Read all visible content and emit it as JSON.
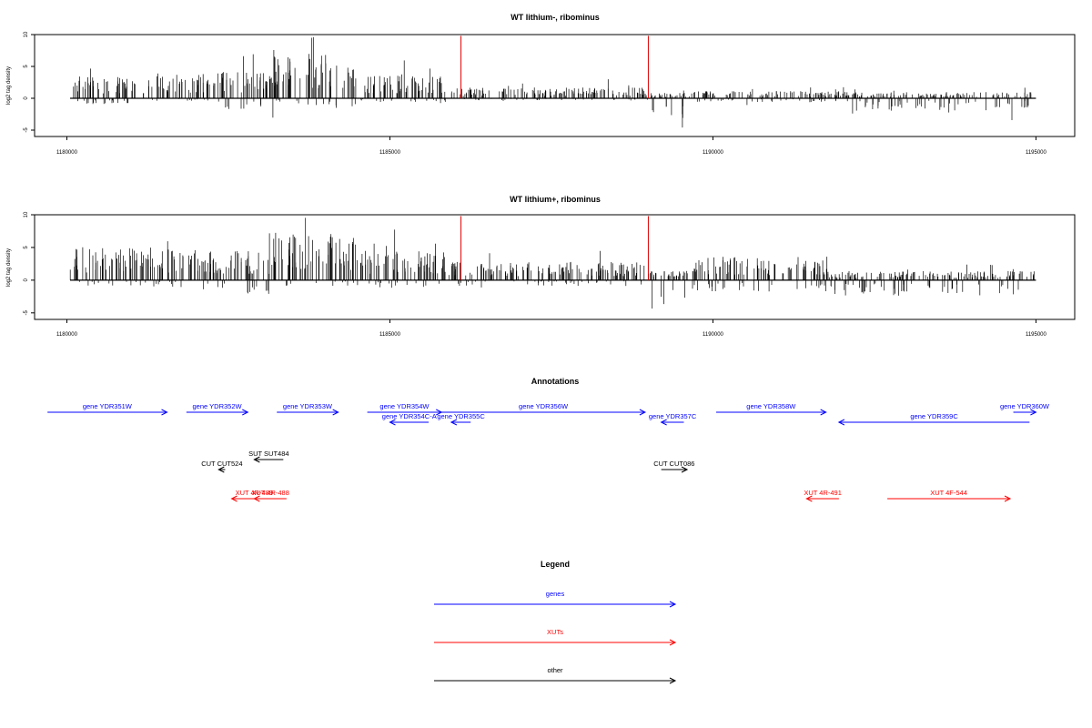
{
  "chart_data": [
    {
      "type": "bar",
      "title": "WT lithium-, ribominus",
      "ylabel": "log2 tag density",
      "xlim": [
        1179500,
        1195600
      ],
      "ylim": [
        -6,
        10
      ],
      "yticks": [
        "-5",
        "0",
        "5",
        "10"
      ],
      "xticks": [
        "1180000",
        "1185000",
        "1190000",
        "1195000"
      ],
      "markers": [
        1186100,
        1189000
      ],
      "marker_color": "#e00000",
      "regions": [
        {
          "from": 1180050,
          "to": 1181300,
          "pos": 2.5,
          "neg": -0.6
        },
        {
          "from": 1181300,
          "to": 1182200,
          "pos": 2.8,
          "neg": -0.3
        },
        {
          "from": 1182200,
          "to": 1183200,
          "pos": 3.0,
          "neg": -1.2
        },
        {
          "from": 1183200,
          "to": 1184500,
          "pos": 5.0,
          "neg": -0.9
        },
        {
          "from": 1184500,
          "to": 1185900,
          "pos": 2.6,
          "neg": -0.4
        },
        {
          "from": 1185900,
          "to": 1189000,
          "pos": 1.2,
          "neg": -0.2
        },
        {
          "from": 1189000,
          "to": 1189700,
          "pos": 0.6,
          "neg": -2.6
        },
        {
          "from": 1189700,
          "to": 1192000,
          "pos": 0.8,
          "neg": -0.4
        },
        {
          "from": 1192000,
          "to": 1195000,
          "pos": 0.7,
          "neg": -1.3
        }
      ]
    },
    {
      "type": "bar",
      "title": "WT lithium+, ribominus",
      "ylabel": "log2 tag density",
      "xlim": [
        1179500,
        1195600
      ],
      "ylim": [
        -6,
        10
      ],
      "yticks": [
        "-5",
        "0",
        "5",
        "10"
      ],
      "xticks": [
        "1180000",
        "1185000",
        "1190000",
        "1195000"
      ],
      "markers": [
        1186100,
        1189000
      ],
      "marker_color": "#e00000",
      "regions": [
        {
          "from": 1180050,
          "to": 1181300,
          "pos": 3.6,
          "neg": -0.6
        },
        {
          "from": 1181300,
          "to": 1182200,
          "pos": 3.4,
          "neg": -0.8
        },
        {
          "from": 1182200,
          "to": 1183200,
          "pos": 3.2,
          "neg": -1.4
        },
        {
          "from": 1183200,
          "to": 1184500,
          "pos": 5.2,
          "neg": -0.6
        },
        {
          "from": 1184500,
          "to": 1185900,
          "pos": 3.2,
          "neg": -0.8
        },
        {
          "from": 1185900,
          "to": 1189000,
          "pos": 2.0,
          "neg": -0.6
        },
        {
          "from": 1189000,
          "to": 1189700,
          "pos": 1.0,
          "neg": -3.0
        },
        {
          "from": 1189700,
          "to": 1191800,
          "pos": 2.6,
          "neg": -1.2
        },
        {
          "from": 1191800,
          "to": 1195000,
          "pos": 1.0,
          "neg": -1.6
        }
      ]
    }
  ],
  "annotations": {
    "title": "Annotations",
    "features": [
      {
        "label": "gene YDR351W",
        "kind": "gene",
        "strand": "+",
        "start": 1179700,
        "end": 1181550,
        "row": 0
      },
      {
        "label": "gene YDR352W",
        "kind": "gene",
        "strand": "+",
        "start": 1181850,
        "end": 1182800,
        "row": 0
      },
      {
        "label": "gene YDR353W",
        "kind": "gene",
        "strand": "+",
        "start": 1183250,
        "end": 1184200,
        "row": 0
      },
      {
        "label": "gene YDR354W",
        "kind": "gene",
        "strand": "+",
        "start": 1184650,
        "end": 1185800,
        "row": 0
      },
      {
        "label": "gene YDR354C-A",
        "kind": "gene",
        "strand": "-",
        "start": 1185000,
        "end": 1185600,
        "row": 1
      },
      {
        "label": "gene YDR355C",
        "kind": "gene",
        "strand": "-",
        "start": 1185950,
        "end": 1186250,
        "row": 1
      },
      {
        "label": "gene YDR356W",
        "kind": "gene",
        "strand": "+",
        "start": 1185800,
        "end": 1188950,
        "row": 0
      },
      {
        "label": "gene YDR357C",
        "kind": "gene",
        "strand": "-",
        "start": 1189200,
        "end": 1189550,
        "row": 1
      },
      {
        "label": "gene YDR358W",
        "kind": "gene",
        "strand": "+",
        "start": 1190050,
        "end": 1191750,
        "row": 0
      },
      {
        "label": "gene YDR359C",
        "kind": "gene",
        "strand": "-",
        "start": 1191950,
        "end": 1194900,
        "row": 1
      },
      {
        "label": "gene YDR360W",
        "kind": "gene",
        "strand": "+",
        "start": 1194650,
        "end": 1195000,
        "row": 0
      },
      {
        "label": "SUT SUT484",
        "kind": "other",
        "strand": "-",
        "start": 1182900,
        "end": 1183350,
        "row": 3
      },
      {
        "label": "CUT CUT524",
        "kind": "other",
        "strand": "-",
        "start": 1182350,
        "end": 1182450,
        "row": 4
      },
      {
        "label": "CUT CUT086",
        "kind": "other",
        "strand": "+",
        "start": 1189200,
        "end": 1189600,
        "row": 4
      },
      {
        "label": "XUT 4R-489",
        "kind": "xut",
        "strand": "-",
        "start": 1182550,
        "end": 1183250,
        "row": 5
      },
      {
        "label": "XUT 4R-488",
        "kind": "xut",
        "strand": "-",
        "start": 1182900,
        "end": 1183400,
        "row": 5
      },
      {
        "label": "XUT 4R-491",
        "kind": "xut",
        "strand": "-",
        "start": 1191450,
        "end": 1191950,
        "row": 5
      },
      {
        "label": "XUT 4F-544",
        "kind": "xut",
        "strand": "+",
        "start": 1192700,
        "end": 1194600,
        "row": 5
      }
    ]
  },
  "legend": {
    "title": "Legend",
    "items": [
      {
        "label": "genes",
        "color": "#0000ff"
      },
      {
        "label": "XUTs",
        "color": "#ff0000"
      },
      {
        "label": "other",
        "color": "#000000"
      }
    ]
  },
  "colors": {
    "gene": "#0000ff",
    "xut": "#ff0000",
    "other": "#000000",
    "marker": "#e00000"
  }
}
